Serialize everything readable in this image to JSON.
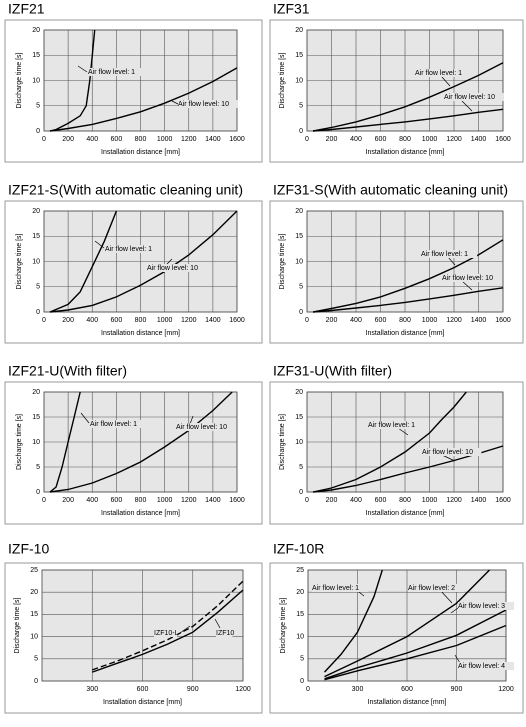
{
  "chart_data": [
    {
      "type": "line",
      "title": "IZF21",
      "x_label": "Installation distance [mm]",
      "y_label": "Discharge time [s]",
      "xlim": [
        0,
        1600
      ],
      "ylim": [
        0,
        20
      ],
      "xticks": [
        0,
        200,
        400,
        600,
        800,
        1000,
        1200,
        1400,
        1600
      ],
      "yticks": [
        0,
        5,
        10,
        15,
        20
      ],
      "grid": true,
      "series": [
        {
          "name": "Air flow level: 1",
          "color": "#000000",
          "x": [
            50,
            100,
            200,
            300,
            350,
            380,
            400,
            420
          ],
          "values": [
            0,
            0.3,
            1.5,
            3,
            5,
            10,
            15,
            20
          ]
        },
        {
          "name": "Air flow level: 10",
          "color": "#000000",
          "x": [
            50,
            200,
            400,
            600,
            800,
            1000,
            1200,
            1400,
            1600
          ],
          "values": [
            0,
            0.5,
            1.3,
            2.5,
            3.8,
            5.5,
            7.5,
            9.8,
            12.5
          ]
        }
      ]
    },
    {
      "type": "line",
      "title": "IZF31",
      "x_label": "Installation distance [mm]",
      "y_label": "Discharge time [s]",
      "xlim": [
        0,
        1600
      ],
      "ylim": [
        0,
        20
      ],
      "xticks": [
        0,
        200,
        400,
        600,
        800,
        1000,
        1200,
        1400,
        1600
      ],
      "yticks": [
        0,
        5,
        10,
        15,
        20
      ],
      "grid": true,
      "series": [
        {
          "name": "Air flow level: 1",
          "color": "#000000",
          "x": [
            50,
            200,
            400,
            600,
            800,
            1000,
            1200,
            1400,
            1600
          ],
          "values": [
            0,
            0.7,
            1.8,
            3.2,
            4.8,
            6.7,
            8.8,
            11,
            13.5
          ]
        },
        {
          "name": "Air flow level: 10",
          "color": "#000000",
          "x": [
            50,
            200,
            400,
            600,
            800,
            1000,
            1200,
            1400,
            1600
          ],
          "values": [
            0,
            0.3,
            0.8,
            1.3,
            1.8,
            2.4,
            3,
            3.7,
            4.3
          ]
        }
      ]
    },
    {
      "type": "line",
      "title": "IZF21-S(With automatic cleaning unit)",
      "x_label": "Installation distance [mm]",
      "y_label": "Discharge time [s]",
      "xlim": [
        0,
        1600
      ],
      "ylim": [
        0,
        20
      ],
      "xticks": [
        0,
        200,
        400,
        600,
        800,
        1000,
        1200,
        1400,
        1600
      ],
      "yticks": [
        0,
        5,
        10,
        15,
        20
      ],
      "grid": true,
      "series": [
        {
          "name": "Air flow level: 1",
          "color": "#000000",
          "x": [
            50,
            200,
            300,
            400,
            500,
            600
          ],
          "values": [
            0,
            1.5,
            4,
            9,
            14,
            20
          ]
        },
        {
          "name": "Air flow level: 10",
          "color": "#000000",
          "x": [
            50,
            200,
            400,
            600,
            800,
            1000,
            1200,
            1400,
            1600
          ],
          "values": [
            0,
            0.4,
            1.3,
            3,
            5.3,
            8,
            11.3,
            15.3,
            20
          ]
        }
      ]
    },
    {
      "type": "line",
      "title": "IZF31-S(With automatic cleaning unit)",
      "x_label": "Installation distance [mm]",
      "y_label": "Discharge time [s]",
      "xlim": [
        0,
        1600
      ],
      "ylim": [
        0,
        20
      ],
      "xticks": [
        0,
        200,
        400,
        600,
        800,
        1000,
        1200,
        1400,
        1600
      ],
      "yticks": [
        0,
        5,
        10,
        15,
        20
      ],
      "grid": true,
      "series": [
        {
          "name": "Air flow level: 1",
          "color": "#000000",
          "x": [
            50,
            200,
            400,
            600,
            800,
            1000,
            1200,
            1400,
            1600
          ],
          "values": [
            0,
            0.7,
            1.7,
            3,
            4.7,
            6.6,
            8.8,
            11.3,
            14.3
          ]
        },
        {
          "name": "Air flow level: 10",
          "color": "#000000",
          "x": [
            50,
            200,
            400,
            600,
            800,
            1000,
            1200,
            1400,
            1600
          ],
          "values": [
            0,
            0.3,
            0.8,
            1.3,
            1.9,
            2.6,
            3.3,
            4.1,
            4.8
          ]
        }
      ]
    },
    {
      "type": "line",
      "title": "IZF21-U(With filter)",
      "x_label": "Installation distance [mm]",
      "y_label": "Discharge time [s]",
      "xlim": [
        0,
        1600
      ],
      "ylim": [
        0,
        20
      ],
      "xticks": [
        0,
        200,
        400,
        600,
        800,
        1000,
        1200,
        1400,
        1600
      ],
      "yticks": [
        0,
        5,
        10,
        15,
        20
      ],
      "grid": true,
      "series": [
        {
          "name": "Air flow level: 1",
          "color": "#000000",
          "x": [
            50,
            100,
            150,
            200,
            250,
            300
          ],
          "values": [
            0,
            1,
            5,
            10,
            15,
            20
          ]
        },
        {
          "name": "Air flow level: 10",
          "color": "#000000",
          "x": [
            50,
            200,
            400,
            600,
            800,
            1000,
            1200,
            1400,
            1560
          ],
          "values": [
            0,
            0.5,
            1.8,
            3.7,
            6,
            9,
            12.3,
            16.3,
            20
          ]
        }
      ]
    },
    {
      "type": "line",
      "title": "IZF31-U(With filter)",
      "x_label": "Installation distance [mm]",
      "y_label": "Discharge time [s]",
      "xlim": [
        0,
        1600
      ],
      "ylim": [
        0,
        20
      ],
      "xticks": [
        0,
        200,
        400,
        600,
        800,
        1000,
        1200,
        1400,
        1600
      ],
      "yticks": [
        0,
        5,
        10,
        15,
        20
      ],
      "grid": true,
      "series": [
        {
          "name": "Air flow level: 1",
          "color": "#000000",
          "x": [
            50,
            200,
            400,
            600,
            800,
            1000,
            1100,
            1200,
            1300
          ],
          "values": [
            0,
            0.8,
            2.5,
            5,
            8,
            11.8,
            14.5,
            17,
            20
          ]
        },
        {
          "name": "Air flow level: 10",
          "color": "#000000",
          "x": [
            50,
            200,
            400,
            600,
            800,
            1000,
            1200,
            1400,
            1600
          ],
          "values": [
            0,
            0.4,
            1.3,
            2.5,
            3.8,
            5,
            6.3,
            7.7,
            9.2
          ]
        }
      ]
    },
    {
      "type": "line",
      "title": "IZF-10",
      "x_label": "Installation distance [mm]",
      "y_label": "Discharge time [s]",
      "xlim": [
        0,
        1200
      ],
      "ylim": [
        0,
        25
      ],
      "xticks": [
        300,
        600,
        900,
        1200
      ],
      "yticks": [
        0,
        5,
        10,
        15,
        20,
        25
      ],
      "grid": true,
      "series": [
        {
          "name": "IZF10-L",
          "color": "#000000",
          "dashed": true,
          "x": [
            300,
            450,
            600,
            750,
            900,
            1050,
            1200
          ],
          "values": [
            2.5,
            4.5,
            6.8,
            9.3,
            12.3,
            17,
            22.5
          ]
        },
        {
          "name": "IZF10",
          "color": "#000000",
          "x": [
            300,
            450,
            600,
            750,
            900,
            1050,
            1200
          ],
          "values": [
            2,
            4,
            6,
            8.3,
            11,
            15.5,
            20.5
          ]
        }
      ]
    },
    {
      "type": "line",
      "title": "IZF-10R",
      "x_label": "Installation distance [mm]",
      "y_label": "Discharge time [s]",
      "xlim": [
        0,
        1200
      ],
      "ylim": [
        0,
        25
      ],
      "xticks": [
        0,
        300,
        600,
        900,
        1200
      ],
      "yticks": [
        0,
        5,
        10,
        15,
        20,
        25
      ],
      "grid": true,
      "series": [
        {
          "name": "Air flow level: 1",
          "color": "#000000",
          "x": [
            100,
            200,
            300,
            400,
            450
          ],
          "values": [
            2,
            6,
            11,
            19,
            25
          ]
        },
        {
          "name": "Air flow level: 2",
          "color": "#000000",
          "x": [
            100,
            300,
            600,
            900,
            1100
          ],
          "values": [
            1,
            4.5,
            10,
            17.5,
            25
          ]
        },
        {
          "name": "Air flow level: 3",
          "color": "#000000",
          "x": [
            100,
            300,
            600,
            900,
            1200
          ],
          "values": [
            0.5,
            3,
            6.3,
            10.3,
            16
          ]
        },
        {
          "name": "Air flow level: 4",
          "color": "#000000",
          "x": [
            100,
            300,
            600,
            900,
            1200
          ],
          "values": [
            0.3,
            2.3,
            5,
            8,
            12.5
          ]
        }
      ]
    }
  ]
}
